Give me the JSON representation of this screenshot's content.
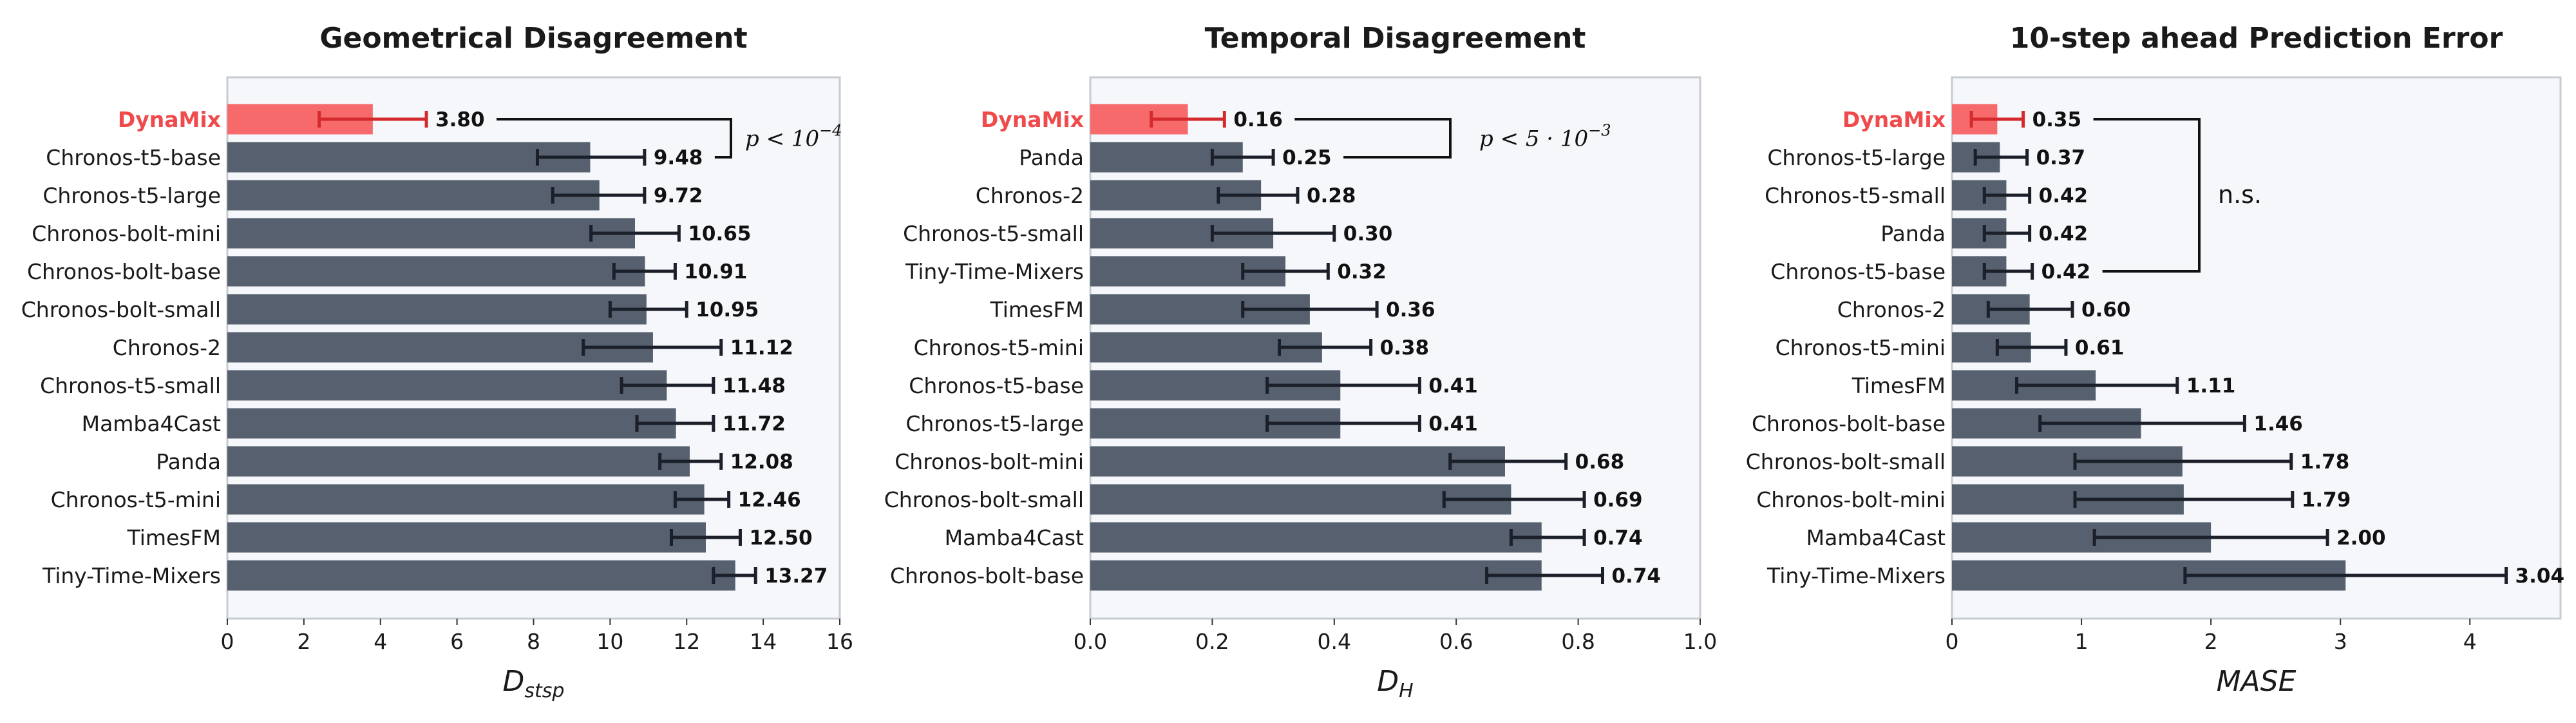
{
  "colors": {
    "highlight_bar": "#f66a6c",
    "highlight_text": "#ef4a4c",
    "highlight_err": "#d42a2d",
    "bar": "#56606e",
    "err": "#1a1f29",
    "plot_bg": "#f6f7fa",
    "frame": "#c7cbd2"
  },
  "chart_data": [
    {
      "type": "bar",
      "orientation": "horizontal",
      "title": "Geometrical Disagreement",
      "xlabel": "D",
      "xlabel_sub": "stsp",
      "xlim": [
        0,
        16
      ],
      "xticks": [
        0,
        2,
        4,
        6,
        8,
        10,
        12,
        14,
        16
      ],
      "xtick_labels": [
        "0",
        "2",
        "4",
        "6",
        "8",
        "10",
        "12",
        "14",
        "16"
      ],
      "highlight": "DynaMix",
      "categories": [
        "DynaMix",
        "Chronos-t5-base",
        "Chronos-t5-large",
        "Chronos-bolt-mini",
        "Chronos-bolt-base",
        "Chronos-bolt-small",
        "Chronos-2",
        "Chronos-t5-small",
        "Mamba4Cast",
        "Panda",
        "Chronos-t5-mini",
        "TimesFM",
        "Tiny-Time-Mixers"
      ],
      "values": [
        3.8,
        9.48,
        9.72,
        10.65,
        10.91,
        10.95,
        11.12,
        11.48,
        11.72,
        12.08,
        12.46,
        12.5,
        13.27
      ],
      "value_labels": [
        "3.80",
        "9.48",
        "9.72",
        "10.65",
        "10.91",
        "10.95",
        "11.12",
        "11.48",
        "11.72",
        "12.08",
        "12.46",
        "12.50",
        "13.27"
      ],
      "error_low": [
        2.4,
        8.1,
        8.5,
        9.5,
        10.1,
        10.0,
        9.3,
        10.3,
        10.7,
        11.3,
        11.7,
        11.6,
        12.7
      ],
      "error_high": [
        5.2,
        10.9,
        10.9,
        11.8,
        11.7,
        12.0,
        12.9,
        12.7,
        12.7,
        12.9,
        13.1,
        13.4,
        13.8
      ],
      "annotation": {
        "text": "p < 10",
        "superscript": "−4",
        "between": [
          "DynaMix",
          "Chronos-t5-base"
        ]
      }
    },
    {
      "type": "bar",
      "orientation": "horizontal",
      "title": "Temporal Disagreement",
      "xlabel": "D",
      "xlabel_sub": "H",
      "xlim": [
        0,
        1
      ],
      "xticks": [
        0,
        0.2,
        0.4,
        0.6,
        0.8,
        1.0
      ],
      "xtick_labels": [
        "0.0",
        "0.2",
        "0.4",
        "0.6",
        "0.8",
        "1.0"
      ],
      "highlight": "DynaMix",
      "categories": [
        "DynaMix",
        "Panda",
        "Chronos-2",
        "Chronos-t5-small",
        "Tiny-Time-Mixers",
        "TimesFM",
        "Chronos-t5-mini",
        "Chronos-t5-base",
        "Chronos-t5-large",
        "Chronos-bolt-mini",
        "Chronos-bolt-small",
        "Mamba4Cast",
        "Chronos-bolt-base"
      ],
      "values": [
        0.16,
        0.25,
        0.28,
        0.3,
        0.32,
        0.36,
        0.38,
        0.41,
        0.41,
        0.68,
        0.69,
        0.74,
        0.74
      ],
      "value_labels": [
        "0.16",
        "0.25",
        "0.28",
        "0.30",
        "0.32",
        "0.36",
        "0.38",
        "0.41",
        "0.41",
        "0.68",
        "0.69",
        "0.74",
        "0.74"
      ],
      "error_low": [
        0.1,
        0.2,
        0.21,
        0.2,
        0.25,
        0.25,
        0.31,
        0.29,
        0.29,
        0.59,
        0.58,
        0.69,
        0.65
      ],
      "error_high": [
        0.22,
        0.3,
        0.34,
        0.4,
        0.39,
        0.47,
        0.46,
        0.54,
        0.54,
        0.78,
        0.81,
        0.81,
        0.84
      ],
      "annotation": {
        "text": "p < 5 · 10",
        "superscript": "−3",
        "between": [
          "DynaMix",
          "Panda"
        ]
      }
    },
    {
      "type": "bar",
      "orientation": "horizontal",
      "title": "10-step ahead Prediction Error",
      "xlabel": "MASE",
      "xlabel_sub": "",
      "xlim": [
        0,
        4.7
      ],
      "xticks": [
        0,
        1,
        2,
        3,
        4
      ],
      "xtick_labels": [
        "0",
        "1",
        "2",
        "3",
        "4"
      ],
      "highlight": "DynaMix",
      "categories": [
        "DynaMix",
        "Chronos-t5-large",
        "Chronos-t5-small",
        "Panda",
        "Chronos-t5-base",
        "Chronos-2",
        "Chronos-t5-mini",
        "TimesFM",
        "Chronos-bolt-base",
        "Chronos-bolt-small",
        "Chronos-bolt-mini",
        "Mamba4Cast",
        "Tiny-Time-Mixers"
      ],
      "values": [
        0.35,
        0.37,
        0.42,
        0.42,
        0.42,
        0.6,
        0.61,
        1.11,
        1.46,
        1.78,
        1.79,
        2.0,
        3.04
      ],
      "value_labels": [
        "0.35",
        "0.37",
        "0.42",
        "0.42",
        "0.42",
        "0.60",
        "0.61",
        "1.11",
        "1.46",
        "1.78",
        "1.79",
        "2.00",
        "3.04"
      ],
      "error_low": [
        0.15,
        0.18,
        0.25,
        0.25,
        0.25,
        0.28,
        0.35,
        0.5,
        0.68,
        0.95,
        0.95,
        1.1,
        1.8
      ],
      "error_high": [
        0.55,
        0.58,
        0.6,
        0.6,
        0.62,
        0.93,
        0.88,
        1.74,
        2.26,
        2.62,
        2.63,
        2.9,
        4.28
      ],
      "annotation": {
        "text": "n.s.",
        "superscript": "",
        "between": [
          "DynaMix",
          "Chronos-t5-base"
        ]
      }
    }
  ]
}
